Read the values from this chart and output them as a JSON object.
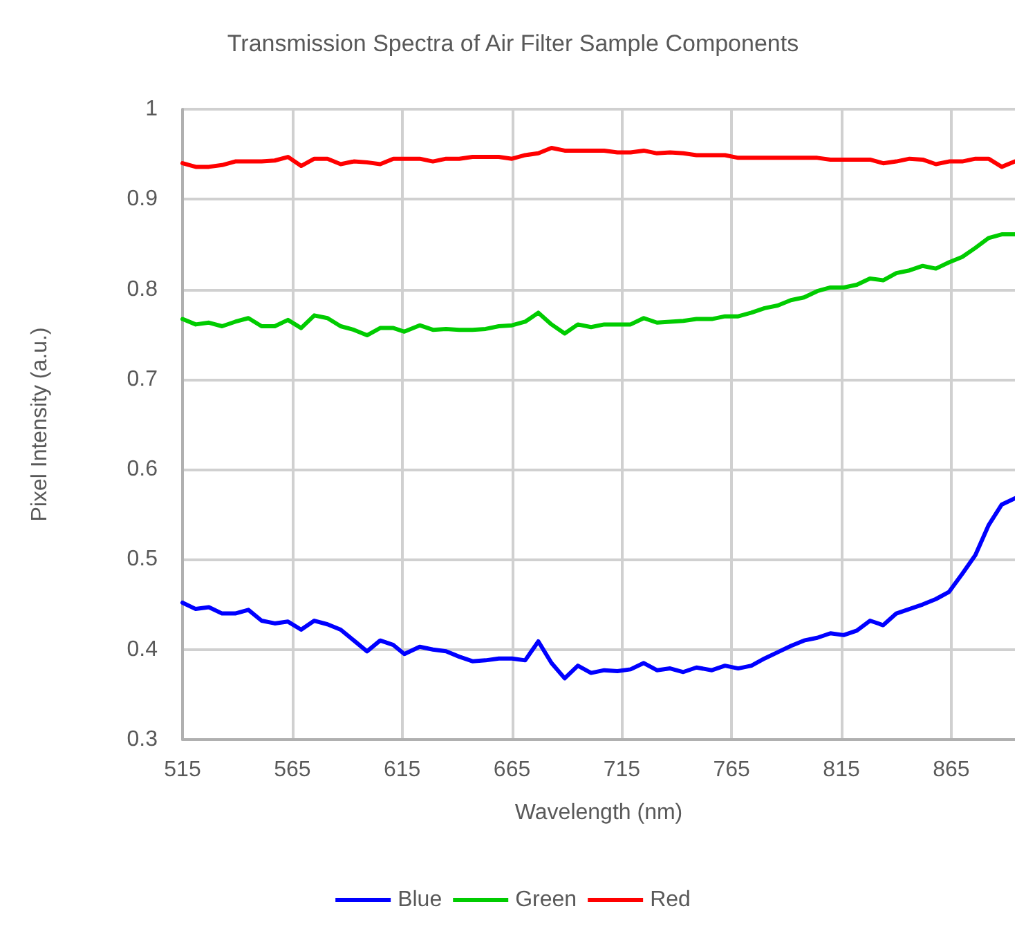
{
  "chart_data": {
    "type": "line",
    "title": "Transmission Spectra of Air Filter Sample Components",
    "xlabel": "Wavelength (nm)",
    "ylabel": "Pixel Intensity (a.u.)",
    "x": [
      515,
      521,
      527,
      533,
      539,
      545,
      551,
      557,
      563,
      569,
      575,
      581,
      587,
      593,
      599,
      605,
      611,
      616,
      623,
      629,
      635,
      641,
      647,
      653,
      659,
      665,
      671,
      677,
      683,
      689,
      695,
      701,
      707,
      713,
      719,
      725,
      731,
      737,
      743,
      749,
      756,
      762,
      768,
      774,
      780,
      786,
      792,
      798,
      804,
      810,
      816,
      822,
      828,
      834,
      840,
      846,
      852,
      858,
      864,
      870,
      876,
      882,
      888,
      894
    ],
    "series": [
      {
        "name": "Blue",
        "color": "#0000ff",
        "values": [
          0.452,
          0.445,
          0.447,
          0.44,
          0.44,
          0.444,
          0.432,
          0.429,
          0.431,
          0.422,
          0.432,
          0.428,
          0.422,
          0.41,
          0.398,
          0.41,
          0.405,
          0.395,
          0.403,
          0.4,
          0.398,
          0.392,
          0.387,
          0.388,
          0.39,
          0.39,
          0.388,
          0.409,
          0.385,
          0.368,
          0.382,
          0.374,
          0.377,
          0.376,
          0.378,
          0.385,
          0.377,
          0.379,
          0.375,
          0.38,
          0.377,
          0.382,
          0.379,
          0.382,
          0.39,
          0.397,
          0.404,
          0.41,
          0.413,
          0.418,
          0.416,
          0.421,
          0.432,
          0.427,
          0.44,
          0.445,
          0.45,
          0.456,
          0.464,
          0.484,
          0.505,
          0.538,
          0.561,
          0.568
        ]
      },
      {
        "name": "Green",
        "color": "#00cc00",
        "values": [
          0.767,
          0.761,
          0.763,
          0.759,
          0.764,
          0.768,
          0.759,
          0.759,
          0.766,
          0.757,
          0.771,
          0.768,
          0.759,
          0.755,
          0.749,
          0.757,
          0.757,
          0.753,
          0.76,
          0.755,
          0.756,
          0.755,
          0.755,
          0.756,
          0.759,
          0.76,
          0.764,
          0.774,
          0.761,
          0.751,
          0.761,
          0.758,
          0.761,
          0.761,
          0.761,
          0.768,
          0.763,
          0.764,
          0.765,
          0.767,
          0.767,
          0.77,
          0.77,
          0.774,
          0.779,
          0.782,
          0.788,
          0.791,
          0.798,
          0.802,
          0.802,
          0.805,
          0.812,
          0.81,
          0.818,
          0.821,
          0.826,
          0.823,
          0.83,
          0.836,
          0.846,
          0.857,
          0.861,
          0.861
        ]
      },
      {
        "name": "Red",
        "color": "#ff0000",
        "values": [
          0.94,
          0.936,
          0.936,
          0.938,
          0.942,
          0.942,
          0.942,
          0.943,
          0.947,
          0.937,
          0.945,
          0.945,
          0.939,
          0.942,
          0.941,
          0.939,
          0.945,
          0.945,
          0.945,
          0.942,
          0.945,
          0.945,
          0.947,
          0.947,
          0.947,
          0.945,
          0.949,
          0.951,
          0.957,
          0.954,
          0.954,
          0.954,
          0.954,
          0.952,
          0.952,
          0.954,
          0.951,
          0.952,
          0.951,
          0.949,
          0.949,
          0.949,
          0.946,
          0.946,
          0.946,
          0.946,
          0.946,
          0.946,
          0.946,
          0.944,
          0.944,
          0.944,
          0.944,
          0.94,
          0.942,
          0.945,
          0.944,
          0.939,
          0.942,
          0.942,
          0.945,
          0.945,
          0.936,
          0.942
        ]
      }
    ],
    "xlim": [
      515,
      894
    ],
    "xticks": [
      515,
      565,
      615,
      665,
      715,
      765,
      815,
      865
    ],
    "ylim": [
      0.3,
      1
    ],
    "yticks": [
      0.3,
      0.4,
      0.5,
      0.6,
      0.7,
      0.8,
      0.9,
      1
    ],
    "grid": true,
    "legend": "bottom",
    "marker": "none",
    "line_style": "solid"
  }
}
